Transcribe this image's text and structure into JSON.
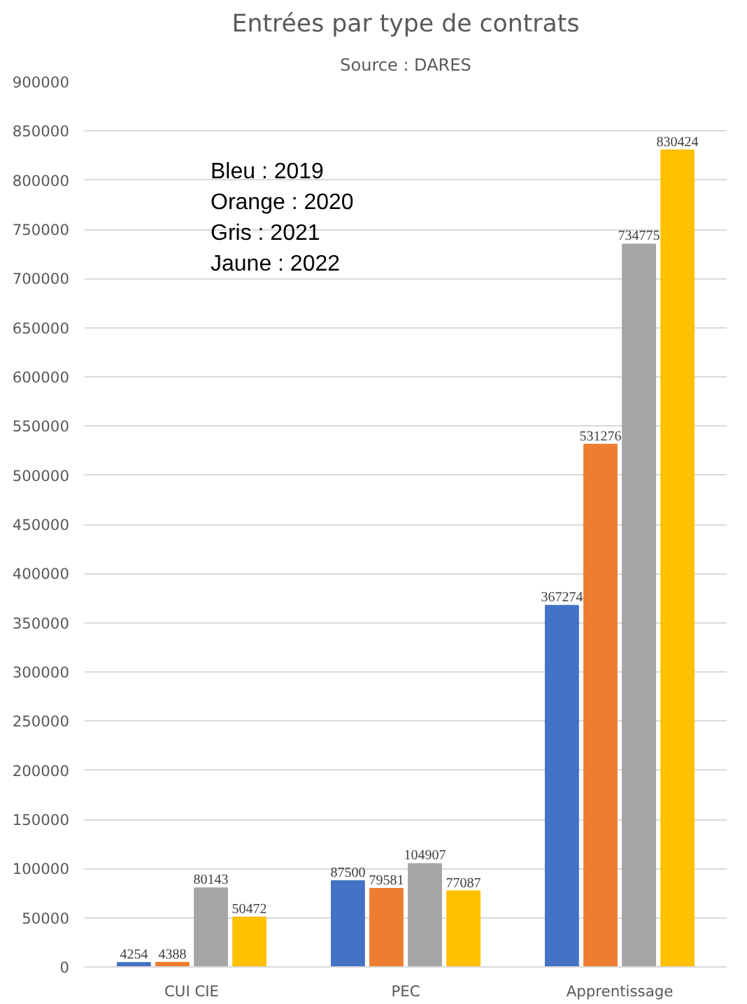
{
  "chart_data": {
    "type": "bar",
    "title": "Entrées par type de contrats",
    "subtitle": "Source : DARES",
    "categories": [
      "CUI CIE",
      "PEC",
      "Apprentissage"
    ],
    "series": [
      {
        "color": "#4472c4",
        "values": [
          4254,
          87500,
          367274
        ]
      },
      {
        "color": "#ed7d31",
        "values": [
          4388,
          79581,
          531276
        ]
      },
      {
        "color": "#a5a5a5",
        "values": [
          80143,
          104907,
          734775
        ]
      },
      {
        "color": "#ffc000",
        "values": [
          50472,
          77087,
          830424
        ]
      }
    ],
    "annotations": [
      "Bleu : 2019",
      "Orange : 2020",
      "Gris : 2021",
      "Jaune : 2022"
    ],
    "ylim": [
      0,
      900000
    ],
    "yticks": [
      0,
      50000,
      100000,
      150000,
      200000,
      250000,
      300000,
      350000,
      400000,
      450000,
      500000,
      550000,
      600000,
      650000,
      700000,
      750000,
      800000,
      850000,
      900000
    ],
    "grid": "y",
    "data_labels": true
  }
}
